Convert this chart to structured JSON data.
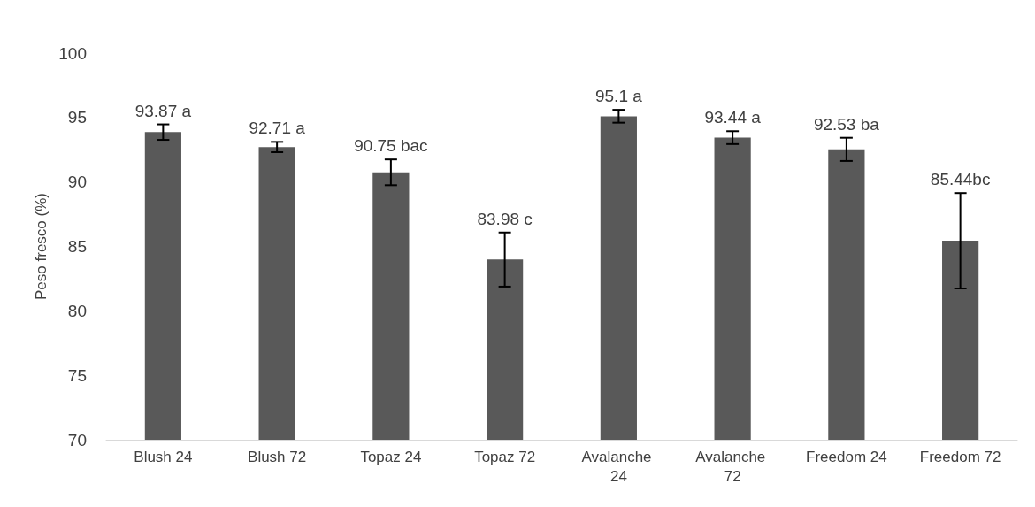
{
  "chart_data": {
    "type": "bar",
    "ylabel": "Peso fresco (%)",
    "categories": [
      "Blush 24",
      "Blush 72",
      "Topaz 24",
      "Topaz 72",
      "Avalanche 24",
      "Avalanche 72",
      "Freedom 24",
      "Freedom 72"
    ],
    "values": [
      93.87,
      92.71,
      90.75,
      83.98,
      95.1,
      93.44,
      92.53,
      85.44
    ],
    "errors": [
      0.6,
      0.4,
      1.0,
      2.1,
      0.5,
      0.5,
      0.9,
      3.7
    ],
    "value_labels": [
      "93.87 a",
      "92.71 a",
      "90.75 bac",
      "83.98 c",
      "95.1 a",
      "93.44 a",
      "92.53 ba",
      "85.44bc"
    ],
    "color": "#595959",
    "ylim": [
      70,
      100
    ],
    "yticks": [
      70,
      75,
      80,
      85,
      90,
      95,
      100
    ],
    "grid": false
  }
}
